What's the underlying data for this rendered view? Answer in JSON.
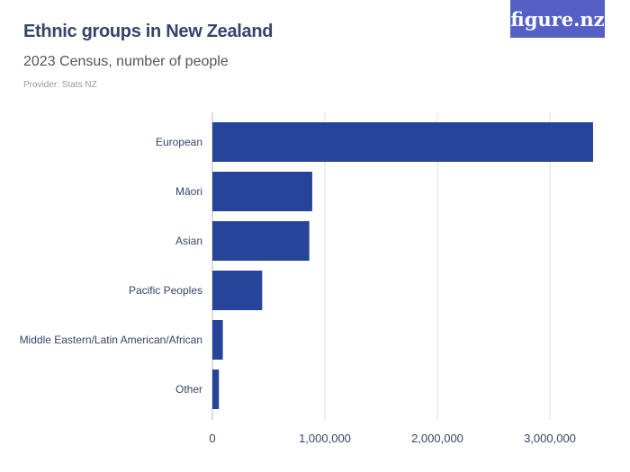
{
  "header": {
    "title": "Ethnic groups in New Zealand",
    "subtitle": "2023 Census, number of people",
    "provider": "Provider: Stats NZ",
    "logo": "figure.nz"
  },
  "colors": {
    "bar": "#26449a",
    "logo_bg": "#5460c6",
    "grid": "#dddddd"
  },
  "chart_data": {
    "type": "bar",
    "orientation": "horizontal",
    "title": "Ethnic groups in New Zealand",
    "subtitle": "2023 Census, number of people",
    "categories": [
      "European",
      "Māori",
      "Asian",
      "Pacific Peoples",
      "Middle Eastern/Latin American/African",
      "Other"
    ],
    "values": [
      3383742,
      887493,
      861576,
      442632,
      92760,
      58053
    ],
    "xlim": [
      0,
      3500000
    ],
    "ticks": [
      0,
      1000000,
      2000000,
      3000000
    ],
    "tick_labels": [
      "0",
      "1,000,000",
      "2,000,000",
      "3,000,000"
    ],
    "grid": true
  }
}
